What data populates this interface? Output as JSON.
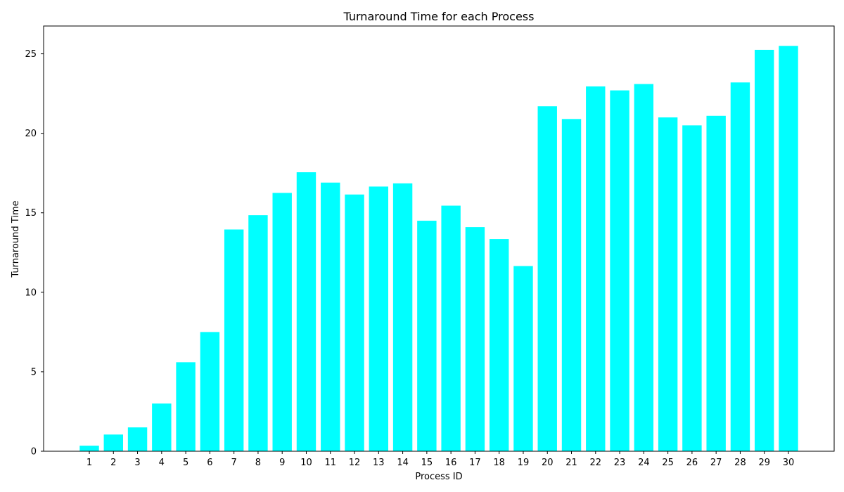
{
  "chart_data": {
    "type": "bar",
    "title": "Turnaround Time for each Process",
    "xlabel": "Process ID",
    "ylabel": "Turnaround Time",
    "categories": [
      "1",
      "2",
      "3",
      "4",
      "5",
      "6",
      "7",
      "8",
      "9",
      "10",
      "11",
      "12",
      "13",
      "14",
      "15",
      "16",
      "17",
      "18",
      "19",
      "20",
      "21",
      "22",
      "23",
      "24",
      "25",
      "26",
      "27",
      "28",
      "29",
      "30"
    ],
    "values": [
      0.35,
      1.05,
      1.5,
      3.0,
      5.6,
      7.5,
      13.95,
      14.85,
      16.25,
      17.55,
      16.9,
      16.15,
      16.65,
      16.85,
      14.5,
      15.45,
      14.1,
      13.35,
      11.65,
      21.7,
      20.9,
      22.95,
      22.7,
      23.1,
      21.0,
      20.5,
      21.1,
      23.2,
      25.25,
      25.5
    ],
    "ylim": [
      0,
      26.75
    ],
    "yticks": [
      0,
      5,
      10,
      15,
      20,
      25
    ],
    "colors": {
      "bar": "#00ffff",
      "axis": "#000000",
      "background": "#ffffff"
    },
    "grid": false,
    "legend": false
  }
}
